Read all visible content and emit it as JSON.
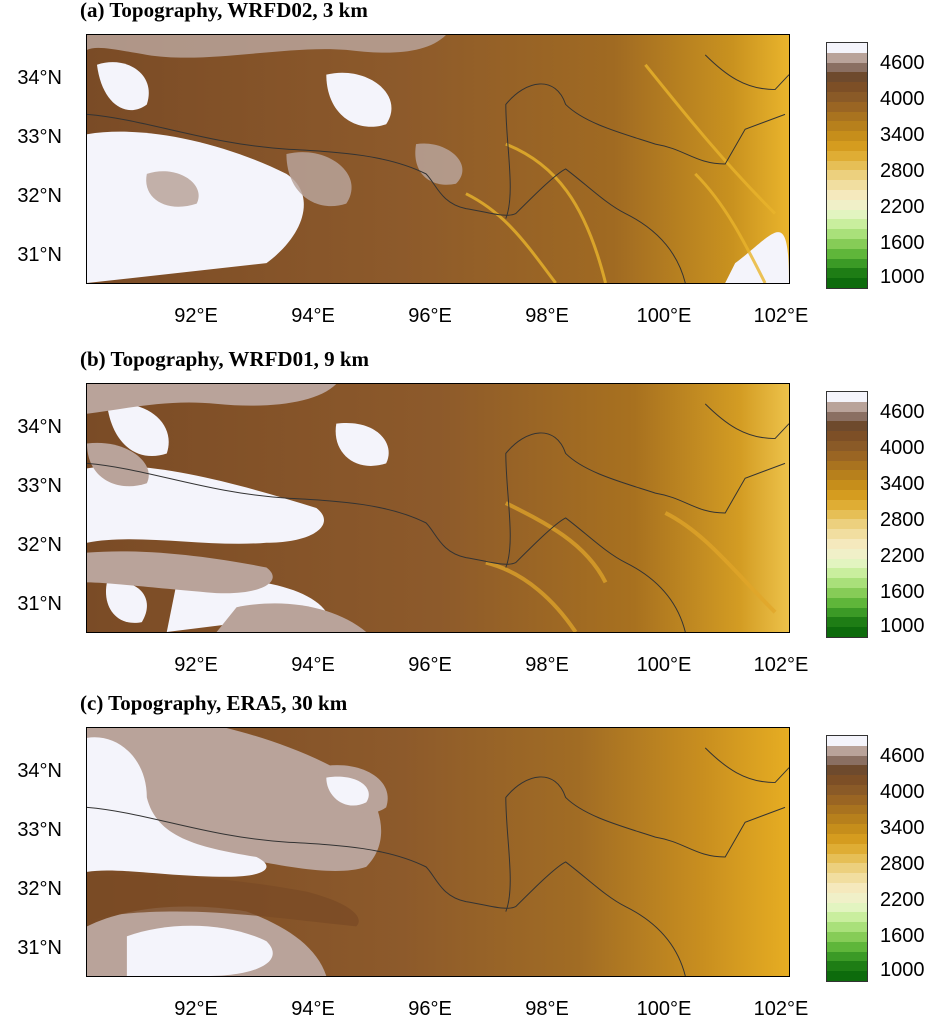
{
  "panels": [
    {
      "title": "(a) Topography, WRFD02, 3 km"
    },
    {
      "title": "(b) Topography, WRFD01, 9 km"
    },
    {
      "title": "(c) Topography, ERA5, 30 km"
    }
  ],
  "axes": {
    "lat_labels": [
      "34°N",
      "33°N",
      "32°N",
      "31°N"
    ],
    "lon_labels": [
      "92°E",
      "94°E",
      "96°E",
      "98°E",
      "100°E",
      "102°E"
    ],
    "lat_range": [
      30.5,
      34.7
    ],
    "lon_range": [
      90.3,
      102.3
    ]
  },
  "colorbar": {
    "labels": [
      "4600",
      "4000",
      "3400",
      "2800",
      "2200",
      "1600",
      "1000"
    ],
    "colors": [
      "#f4f4fb",
      "#b9a39a",
      "#8a6f62",
      "#6e4a2d",
      "#7d4f26",
      "#8a5a27",
      "#9a6523",
      "#a9731f",
      "#b7801c",
      "#c68e1b",
      "#d59c1f",
      "#dfad34",
      "#e6bf56",
      "#ecd07e",
      "#f1dea0",
      "#f5e9bd",
      "#f0f0c8",
      "#e2f4c0",
      "#c9ee9e",
      "#a9e07a",
      "#86cc57",
      "#5fb63a",
      "#3b9a26",
      "#1e7d15",
      "#0d6b0c"
    ]
  },
  "colors": {
    "snow": "#f4f4fb",
    "high": "#b9a39a",
    "mid": "#8d5a2b",
    "valley": "#c9921f",
    "low": "#e9b42c",
    "border": "#333333"
  }
}
